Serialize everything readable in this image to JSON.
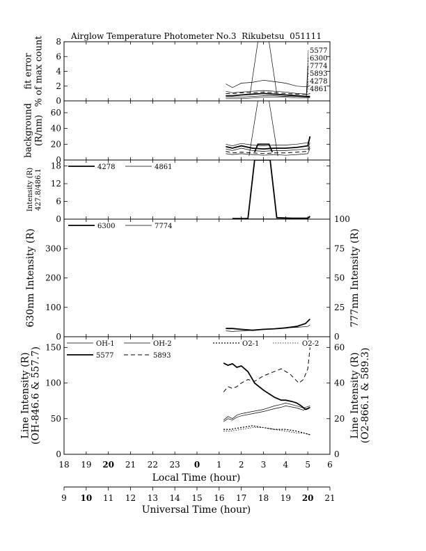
{
  "chart_data": {
    "type": "line",
    "title": "Airglow Temperature Photometer No.3  Rikubetsu  051111",
    "x_axis_local": {
      "label": "Local Time (hour)",
      "range": [
        18,
        30
      ],
      "tick_labels": [
        "18",
        "19",
        "20",
        "21",
        "22",
        "23",
        "0",
        "1",
        "2",
        "3",
        "4",
        "5",
        "6"
      ],
      "bold_ticks": [
        "20",
        "0"
      ]
    },
    "x_axis_ut": {
      "label": "Universal Time (hour)",
      "range": [
        9,
        21
      ],
      "tick_labels": [
        "9",
        "10",
        "11",
        "12",
        "13",
        "14",
        "15",
        "16",
        "17",
        "18",
        "19",
        "20",
        "21"
      ],
      "bold_ticks": [
        "10",
        "20"
      ]
    },
    "panels": [
      {
        "id": "fit_error",
        "ylabel": [
          "fit error",
          "% of max count"
        ],
        "ylim": [
          0,
          8
        ],
        "yticks": [
          "0",
          "2",
          "4",
          "6",
          "8"
        ],
        "label_list": [
          "5577",
          "6300",
          "7774",
          "5893",
          "4278",
          "4861"
        ],
        "series": [
          {
            "name": "5577",
            "style": "thick",
            "x": [
              25.3,
              25.6,
              26.0,
              26.5,
              27.0,
              27.5,
              28.0,
              28.5,
              29.0,
              29.1
            ],
            "y": [
              0.7,
              0.7,
              0.8,
              0.9,
              1.0,
              0.9,
              0.8,
              0.7,
              0.6,
              0.6
            ]
          },
          {
            "name": "6300",
            "style": "thin",
            "x": [
              25.3,
              25.6,
              26.0,
              26.5,
              27.0,
              27.5,
              28.0,
              28.5,
              29.0,
              29.1
            ],
            "y": [
              2.3,
              1.8,
              2.4,
              2.5,
              2.8,
              2.6,
              2.4,
              2.0,
              1.9,
              2.1
            ]
          },
          {
            "name": "7774",
            "style": "thin",
            "x": [
              25.3,
              25.6,
              26.0,
              26.5,
              27.0,
              27.5,
              28.0,
              28.5,
              29.0,
              29.1
            ],
            "y": [
              1.3,
              1.1,
              1.2,
              1.3,
              1.4,
              1.3,
              1.2,
              1.0,
              0.9,
              1.0
            ]
          },
          {
            "name": "5893",
            "style": "dashed",
            "x": [
              25.3,
              25.6,
              26.0,
              26.5,
              27.0,
              27.5,
              28.0,
              28.5,
              29.0,
              29.1
            ],
            "y": [
              1.0,
              1.0,
              1.1,
              1.1,
              1.2,
              1.1,
              1.0,
              0.9,
              0.9,
              1.0
            ]
          },
          {
            "name": "4278",
            "style": "thin",
            "x": [
              25.3,
              26.0,
              26.5,
              27.0,
              27.5,
              28.0,
              28.5,
              29.0,
              29.1
            ],
            "y": [
              0.3,
              0.3,
              0.4,
              0.5,
              0.5,
              0.5,
              0.4,
              0.4,
              0.4
            ]
          },
          {
            "name": "4861",
            "style": "thin",
            "x": [
              25.3,
              26.0,
              26.5,
              27.0,
              27.5,
              28.0,
              28.5,
              29.0,
              29.1
            ],
            "y": [
              0.5,
              0.5,
              0.6,
              0.7,
              0.7,
              0.6,
              0.6,
              0.5,
              0.5
            ]
          },
          {
            "name": "",
            "style": "thin",
            "x": [
              26.4,
              26.75,
              27.25,
              27.6
            ],
            "y": [
              1.0,
              8.0,
              8.0,
              1.0
            ]
          }
        ]
      },
      {
        "id": "background",
        "ylabel": [
          "background",
          "(R/nm)"
        ],
        "ylim": [
          0,
          75
        ],
        "yticks": [
          "0",
          "20",
          "40",
          "60"
        ],
        "series": [
          {
            "name": "",
            "style": "thick",
            "x": [
              25.3,
              25.6,
              26.0,
              26.5,
              27.0,
              27.5,
              28.0,
              28.5,
              29.0,
              29.1
            ],
            "y": [
              17,
              15,
              18,
              15,
              14,
              15,
              15,
              16,
              18,
              30
            ]
          },
          {
            "name": "",
            "style": "thin",
            "x": [
              25.3,
              25.6,
              26.0,
              26.5,
              27.0,
              27.5,
              28.0,
              28.5,
              29.0,
              29.1
            ],
            "y": [
              20,
              18,
              21,
              19,
              18,
              19,
              19,
              20,
              22,
              29
            ]
          },
          {
            "name": "",
            "style": "thin",
            "x": [
              25.3,
              25.6,
              26.0,
              26.5,
              27.0,
              27.5,
              28.0,
              28.5,
              29.0,
              29.1
            ],
            "y": [
              14,
              12,
              15,
              12,
              11,
              12,
              12,
              13,
              14,
              22
            ]
          },
          {
            "name": "",
            "style": "dashed",
            "x": [
              25.3,
              25.6,
              26.0,
              26.5,
              27.0,
              27.5,
              28.0,
              28.5,
              29.0,
              29.1
            ],
            "y": [
              11,
              9,
              10,
              9,
              8,
              9,
              9,
              10,
              11,
              18
            ]
          },
          {
            "name": "",
            "style": "thin",
            "x": [
              25.3,
              25.6,
              26.0,
              26.5,
              27.0,
              27.5,
              28.0,
              28.5,
              29.0,
              29.1
            ],
            "y": [
              8,
              7,
              8,
              7,
              6,
              7,
              6,
              7,
              8,
              15
            ]
          },
          {
            "name": "",
            "style": "thin",
            "x": [
              26.35,
              26.75,
              27.25,
              27.65
            ],
            "y": [
              5,
              75,
              75,
              5
            ]
          },
          {
            "name": "",
            "style": "thick",
            "x": [
              26.6,
              26.75,
              27.25,
              27.4
            ],
            "y": [
              10,
              20,
              20,
              10
            ]
          }
        ]
      },
      {
        "id": "intensity_blue",
        "ylabel": [
          "Intensity (R)",
          "427.8/486.1"
        ],
        "ylim": [
          0,
          20
        ],
        "yticks": [
          "0",
          "6",
          "12",
          "18"
        ],
        "legend": [
          {
            "name": "4278",
            "style": "thick"
          },
          {
            "name": "4861",
            "style": "thin"
          }
        ],
        "series": [
          {
            "name": "4278",
            "style": "thick",
            "x": [
              25.6,
              26.3,
              26.6,
              27.3,
              27.6,
              28.3,
              28.7,
              29.0,
              29.1
            ],
            "y": [
              0.2,
              0.2,
              20,
              20,
              0.5,
              0.3,
              0.3,
              0.3,
              1.0
            ]
          },
          {
            "name": "4861",
            "style": "thin",
            "x": [
              25.6,
              26.3,
              27.0,
              28.0,
              28.7,
              29.1
            ],
            "y": [
              0.1,
              0.1,
              0.1,
              0.1,
              0.2,
              0.5
            ]
          }
        ]
      },
      {
        "id": "red_nir",
        "ylabel_left": "630nm Intensity (R)",
        "ylabel_right": "777nm Intensity (R)",
        "ylim_left": [
          0,
          400
        ],
        "ylim_right": [
          0,
          100
        ],
        "yticks_left": [
          "0",
          "100",
          "200",
          "300"
        ],
        "yticks_right": [
          "0",
          "25",
          "50",
          "75",
          "100"
        ],
        "legend": [
          {
            "name": "6300",
            "style": "thick"
          },
          {
            "name": "7774",
            "style": "thin"
          }
        ],
        "series": [
          {
            "name": "6300",
            "style": "thick",
            "axis": "left",
            "x": [
              25.3,
              25.6,
              26.0,
              26.5,
              27.0,
              27.5,
              28.0,
              28.5,
              28.9,
              29.1
            ],
            "y": [
              28,
              28,
              25,
              22,
              25,
              27,
              30,
              35,
              45,
              60
            ]
          },
          {
            "name": "7774",
            "style": "thin",
            "axis": "left",
            "x": [
              25.3,
              25.6,
              26.0,
              26.5,
              27.0,
              27.5,
              28.0,
              28.5,
              29.0,
              29.1
            ],
            "y": [
              20,
              18,
              20,
              22,
              25,
              27,
              30,
              32,
              35,
              40
            ]
          }
        ]
      },
      {
        "id": "line_intensity",
        "ylabel_left": [
          "Line Intensity (R)",
          "(OH-846.6 & 557.7)"
        ],
        "ylabel_right": [
          "Line Intensity (R)",
          "(O2-866.1 & 589.3)"
        ],
        "ylim_left": [
          0,
          165
        ],
        "ylim_right": [
          0,
          66
        ],
        "yticks_left": [
          "0",
          "50",
          "100",
          "150"
        ],
        "yticks_right": [
          "0",
          "20",
          "40",
          "60"
        ],
        "legend": [
          {
            "name": "OH-1",
            "style": "thin"
          },
          {
            "name": "OH-2",
            "style": "thin"
          },
          {
            "name": "O2-1",
            "style": "dotted"
          },
          {
            "name": "O2-2",
            "style": "dotted-thin"
          },
          {
            "name": "5577",
            "style": "thick"
          },
          {
            "name": "5893",
            "style": "dashed"
          }
        ],
        "series": [
          {
            "name": "OH-1",
            "style": "thin",
            "axis": "left",
            "x": [
              25.2,
              25.4,
              25.6,
              25.8,
              26.0,
              26.5,
              27.0,
              27.5,
              27.8,
              28.0,
              28.5,
              28.8,
              29.0,
              29.1
            ],
            "y": [
              48,
              53,
              50,
              55,
              57,
              60,
              63,
              68,
              70,
              72,
              68,
              65,
              67,
              68
            ]
          },
          {
            "name": "OH-2",
            "style": "thin",
            "axis": "left",
            "x": [
              25.2,
              25.4,
              25.6,
              25.8,
              26.0,
              26.5,
              27.0,
              27.5,
              27.8,
              28.0,
              28.5,
              28.8,
              29.0,
              29.1
            ],
            "y": [
              46,
              50,
              48,
              52,
              54,
              57,
              60,
              64,
              66,
              68,
              65,
              62,
              65,
              66
            ]
          },
          {
            "name": "O2-1",
            "style": "dotted",
            "axis": "right",
            "x": [
              25.2,
              25.5,
              26.0,
              26.5,
              27.0,
              27.5,
              28.0,
              28.5,
              28.8,
              29.1
            ],
            "y": [
              14,
              14,
              15,
              16,
              15,
              14,
              14,
              13,
              12,
              11
            ]
          },
          {
            "name": "O2-2",
            "style": "dotted-thin",
            "axis": "right",
            "x": [
              25.2,
              25.5,
              26.0,
              26.5,
              27.0,
              27.5,
              28.0,
              28.5,
              28.8,
              29.1
            ],
            "y": [
              13,
              13,
              14,
              15,
              15,
              14,
              13,
              12,
              12,
              11
            ]
          },
          {
            "name": "5577",
            "style": "thick",
            "axis": "left",
            "x": [
              25.2,
              25.4,
              25.6,
              25.8,
              26.0,
              26.3,
              26.6,
              27.0,
              27.5,
              27.8,
              28.0,
              28.3,
              28.5,
              28.7,
              28.9,
              29.0,
              29.1
            ],
            "y": [
              128,
              125,
              127,
              122,
              124,
              116,
              100,
              90,
              80,
              76,
              76,
              74,
              72,
              68,
              63,
              64,
              66
            ]
          },
          {
            "name": "5893",
            "style": "dashed",
            "axis": "right",
            "x": [
              25.2,
              25.4,
              25.6,
              25.8,
              26.0,
              26.3,
              26.6,
              27.0,
              27.4,
              27.8,
              28.2,
              28.6,
              28.8,
              29.0,
              29.1
            ],
            "y": [
              35,
              38,
              37,
              38,
              40,
              42,
              41,
              44,
              46,
              48,
              45,
              40,
              42,
              48,
              60
            ]
          }
        ]
      }
    ]
  }
}
